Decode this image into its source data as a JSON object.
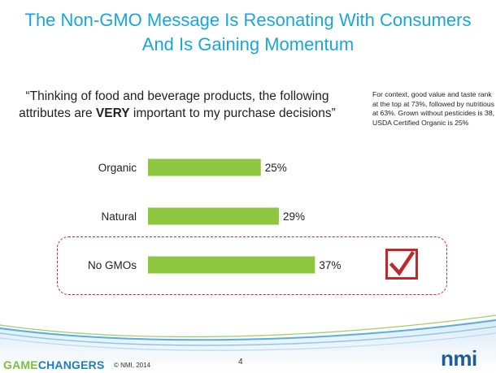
{
  "slide": {
    "title_line1": "The Non-GMO Message Is Resonating With Consumers",
    "title_line2": "And Is Gaining Momentum",
    "quote_part1": "“Thinking of food and beverage products, the following attributes are ",
    "quote_emphasis": "VERY",
    "quote_part2": " important to my purchase decisions”",
    "context_note": "For context, good value and taste rank at the top at 73%, followed by nutritious at 63%. Grown without pesticides is 38, USDA Certified Organic is 25%"
  },
  "chart_data": {
    "type": "bar",
    "orientation": "horizontal",
    "categories": [
      "Organic",
      "Natural",
      "No GMOs"
    ],
    "values": [
      25,
      29,
      37
    ],
    "value_labels": [
      "25%",
      "29%",
      "37%"
    ],
    "unit": "%",
    "xlim": [
      0,
      100
    ],
    "highlighted_category": "No GMOs",
    "bar_color": "#8dc63f",
    "highlight_color": "#c0282e"
  },
  "footer": {
    "brand_part1": "GAME",
    "brand_part2": "CHANGERS",
    "copyright": "© NMI, 2014",
    "page_number": "4",
    "logo_text": "nmi"
  }
}
